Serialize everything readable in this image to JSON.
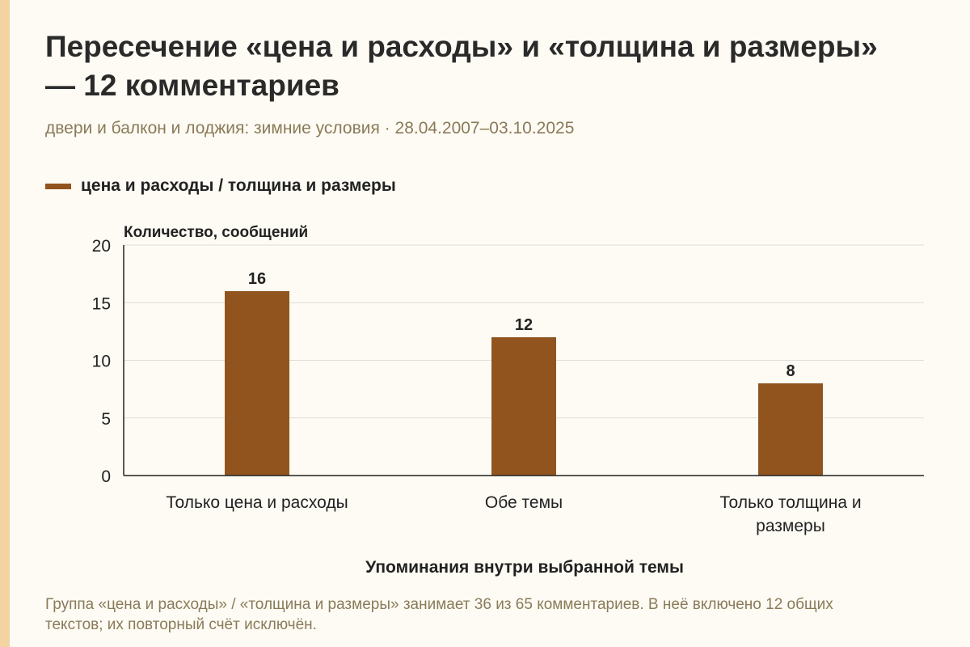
{
  "title": "Пересечение «цена и расходы» и «толщина и размеры» — 12 комментариев",
  "subtitle": "двери и балкон и лоджия: зимние условия · 28.04.2007–03.10.2025",
  "legend": {
    "label": "цена и расходы / толщина и размеры",
    "color": "#92541f"
  },
  "note": "Группа «цена и расходы» / «толщина и размеры» занимает 36 из 65 комментариев. В неё включено 12 общих текстов; их повторный счёт исключён.",
  "colors": {
    "bar": "#92541f",
    "accent": "#f4d3a3",
    "grid": "#dddddd",
    "axis": "#222222"
  },
  "chart_data": {
    "type": "bar",
    "categories": [
      [
        "Только цена и расходы"
      ],
      [
        "Обе темы"
      ],
      [
        "Только толщина и",
        "размеры"
      ]
    ],
    "series": [
      {
        "name": "цена и расходы / толщина и размеры",
        "values": [
          16,
          12,
          8
        ]
      }
    ],
    "xlabel": "Упоминания внутри выбранной темы",
    "ylabel": "Количество, сообщений",
    "ylim": [
      0,
      20
    ],
    "yticks": [
      0,
      5,
      10,
      15,
      20
    ],
    "grid": true,
    "legend_position": "top-left"
  }
}
